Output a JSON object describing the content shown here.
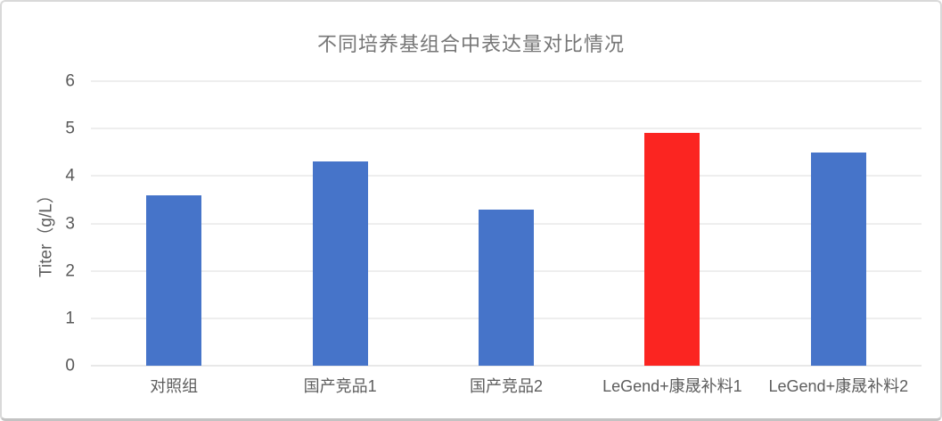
{
  "chart_data": {
    "type": "bar",
    "title": "不同培养基组合中表达量对比情况",
    "ylabel": "Titer（g/L）",
    "xlabel": "",
    "categories": [
      "对照组",
      "国产竞品1",
      "国产竞品2",
      "LeGend+康晟补料1",
      "LeGend+康晟补料2"
    ],
    "values": [
      3.6,
      4.3,
      3.3,
      4.9,
      4.5
    ],
    "bar_colors": [
      "#4674c9",
      "#4674c9",
      "#4674c9",
      "#fb2521",
      "#4674c9"
    ],
    "highlighted_category": "LeGend+康晟补料1",
    "ylim": [
      0,
      6
    ],
    "yticks": [
      0,
      1,
      2,
      3,
      4,
      5,
      6
    ],
    "ytick_labels": [
      "0",
      "1",
      "2",
      "3",
      "4",
      "5",
      "6"
    ],
    "grid": "horizontal",
    "legend_position": "none",
    "data_labels": "none"
  },
  "colors": {
    "bar_default": "#4674c9",
    "bar_highlight": "#fb2521",
    "gridline": "#dcdcdc",
    "axis_baseline": "#d0d0d0",
    "title_text": "#767676",
    "axis_text": "#595959",
    "card_border": "#d9d9d9"
  }
}
